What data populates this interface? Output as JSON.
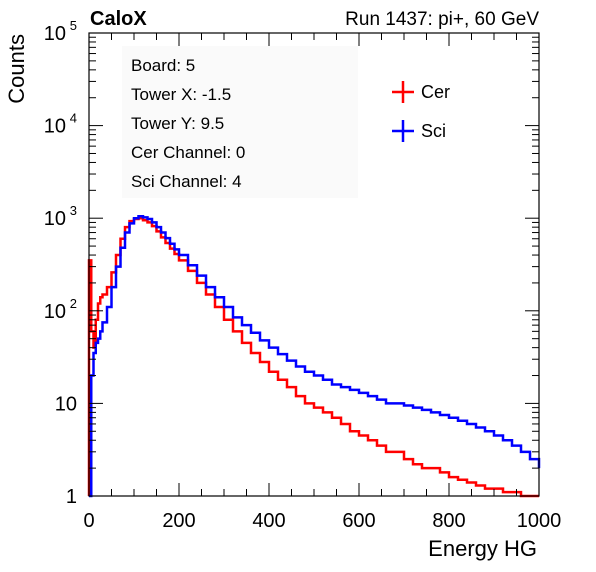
{
  "header": {
    "left": "CaloX",
    "right": "Run 1437: pi+, 60 GeV"
  },
  "info_box": {
    "lines": [
      "Board: 5",
      "Tower X: -1.5",
      "Tower Y: 9.5",
      "Cer Channel: 0",
      "Sci Channel: 4"
    ]
  },
  "chart_data": {
    "type": "line",
    "title": "",
    "xlabel": "Energy HG",
    "ylabel": "Counts",
    "xlim": [
      0,
      1000
    ],
    "ylim": [
      1,
      100000
    ],
    "yscale": "log",
    "x_ticks": [
      0,
      200,
      400,
      600,
      800,
      1000
    ],
    "y_ticks": [
      1,
      10,
      100,
      1000,
      10000,
      100000
    ],
    "y_tick_labels": {
      "1": {
        "base": "1",
        "exp": ""
      },
      "10": {
        "base": "10",
        "exp": ""
      },
      "100": {
        "base": "10",
        "exp": "2"
      },
      "1000": {
        "base": "10",
        "exp": "3"
      },
      "10000": {
        "base": "10",
        "exp": "4"
      },
      "100000": {
        "base": "10",
        "exp": "5"
      }
    },
    "grid": false,
    "legend_position": "top-right",
    "colors": {
      "Cer": "#ff0000",
      "Sci": "#0000ff"
    },
    "series": [
      {
        "name": "Cer",
        "x": [
          0,
          5,
          10,
          15,
          20,
          25,
          30,
          40,
          50,
          60,
          70,
          80,
          90,
          100,
          110,
          120,
          130,
          140,
          150,
          160,
          170,
          180,
          190,
          200,
          220,
          240,
          260,
          280,
          300,
          320,
          340,
          360,
          380,
          400,
          420,
          440,
          460,
          480,
          500,
          520,
          540,
          560,
          580,
          600,
          620,
          640,
          660,
          680,
          700,
          720,
          740,
          760,
          780,
          800,
          820,
          840,
          860,
          880,
          900,
          920,
          940,
          960,
          980,
          1000
        ],
        "y": [
          350,
          60,
          40,
          80,
          120,
          140,
          150,
          180,
          260,
          400,
          600,
          800,
          930,
          980,
          1000,
          950,
          900,
          820,
          720,
          620,
          540,
          470,
          410,
          350,
          270,
          200,
          150,
          110,
          80,
          60,
          45,
          35,
          28,
          22,
          18,
          15,
          12,
          10,
          9,
          8,
          7,
          6,
          5,
          4.5,
          4,
          3.5,
          3,
          3,
          2.5,
          2.2,
          2,
          2,
          1.8,
          1.6,
          1.5,
          1.4,
          1.3,
          1.2,
          1.2,
          1.1,
          1.1,
          1,
          1,
          1
        ]
      },
      {
        "name": "Sci",
        "x": [
          0,
          5,
          10,
          15,
          20,
          25,
          30,
          40,
          50,
          60,
          70,
          80,
          90,
          100,
          110,
          120,
          130,
          140,
          150,
          160,
          170,
          180,
          190,
          200,
          220,
          240,
          260,
          280,
          300,
          320,
          340,
          360,
          380,
          400,
          420,
          440,
          460,
          480,
          500,
          520,
          540,
          560,
          580,
          600,
          620,
          640,
          660,
          680,
          700,
          720,
          740,
          760,
          780,
          800,
          820,
          840,
          860,
          880,
          900,
          920,
          940,
          960,
          980,
          1000
        ],
        "y": [
          1,
          20,
          35,
          45,
          50,
          60,
          75,
          110,
          180,
          300,
          480,
          700,
          880,
          1000,
          1050,
          1020,
          980,
          900,
          800,
          700,
          610,
          530,
          460,
          400,
          310,
          240,
          180,
          140,
          110,
          85,
          70,
          58,
          48,
          40,
          34,
          29,
          25,
          22,
          20,
          18,
          16,
          15,
          14,
          13,
          12,
          11,
          10,
          10,
          9.5,
          9,
          8.5,
          8,
          7.5,
          7,
          6.5,
          6,
          5.5,
          5,
          4.5,
          4,
          3.5,
          3,
          2.5,
          2
        ]
      }
    ]
  }
}
